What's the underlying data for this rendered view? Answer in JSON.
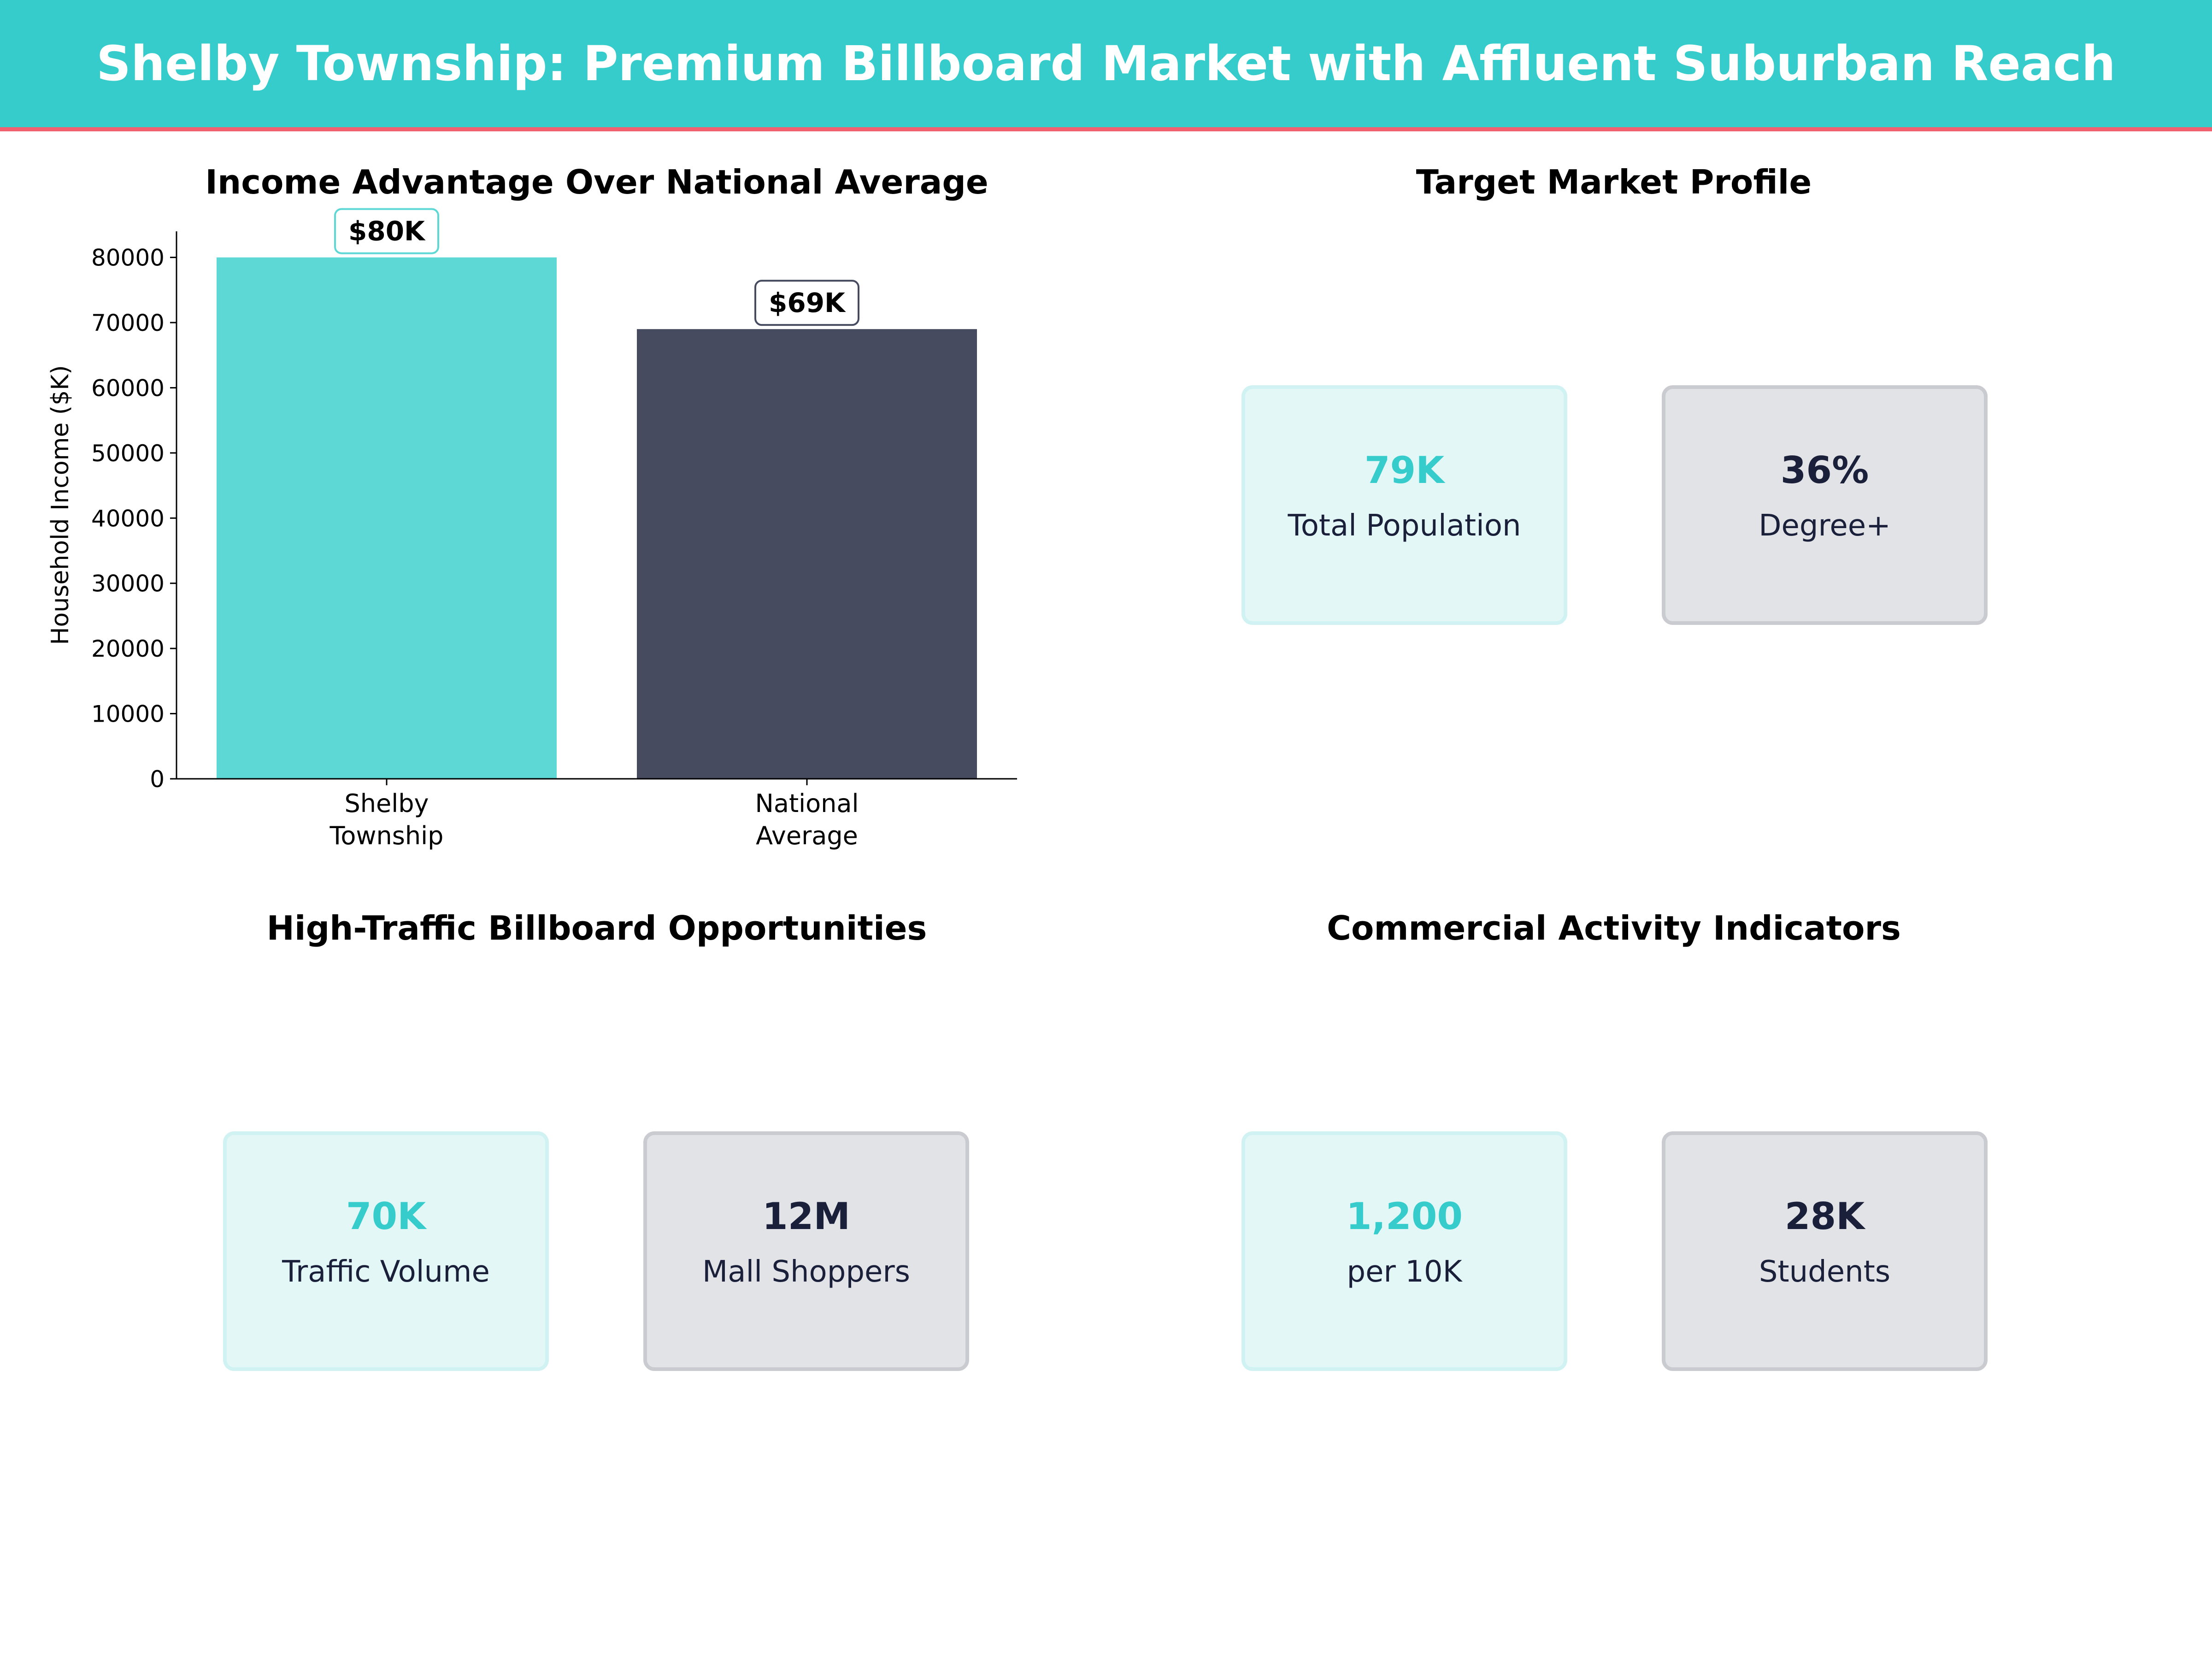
{
  "header": {
    "title": "Shelby Township: Premium Billboard Market with Affluent Suburban Reach"
  },
  "panels": {
    "income": {
      "title": "Income Advantage Over National Average"
    },
    "target": {
      "title": "Target Market Profile",
      "cards": [
        {
          "value": "79K",
          "label": "Total Population"
        },
        {
          "value": "36%",
          "label": "Degree+"
        }
      ]
    },
    "traffic": {
      "title": "High-Traffic Billboard Opportunities",
      "cards": [
        {
          "value": "70K",
          "label": "Traffic Volume"
        },
        {
          "value": "12M",
          "label": "Mall Shoppers"
        }
      ]
    },
    "commercial": {
      "title": "Commercial Activity Indicators",
      "cards": [
        {
          "value": "1,200",
          "label": "per 10K"
        },
        {
          "value": "28K",
          "label": "Students"
        }
      ]
    }
  },
  "colors": {
    "accent": "#36CCCC",
    "accent_bar": "#5DD8D4",
    "navy_bar": "#464B60",
    "header_line": "#F0606E"
  },
  "chart_data": {
    "type": "bar",
    "title": "Income Advantage Over National Average",
    "categories": [
      [
        "Shelby",
        "Township"
      ],
      [
        "National",
        "Average"
      ]
    ],
    "values": [
      80000,
      69000
    ],
    "data_labels": [
      "$80K",
      "$69K"
    ],
    "xlabel": "",
    "ylabel": "Household Income ($K)",
    "ylim": [
      0,
      84000
    ],
    "yticks": [
      0,
      10000,
      20000,
      30000,
      40000,
      50000,
      60000,
      70000,
      80000
    ],
    "grid": false
  }
}
